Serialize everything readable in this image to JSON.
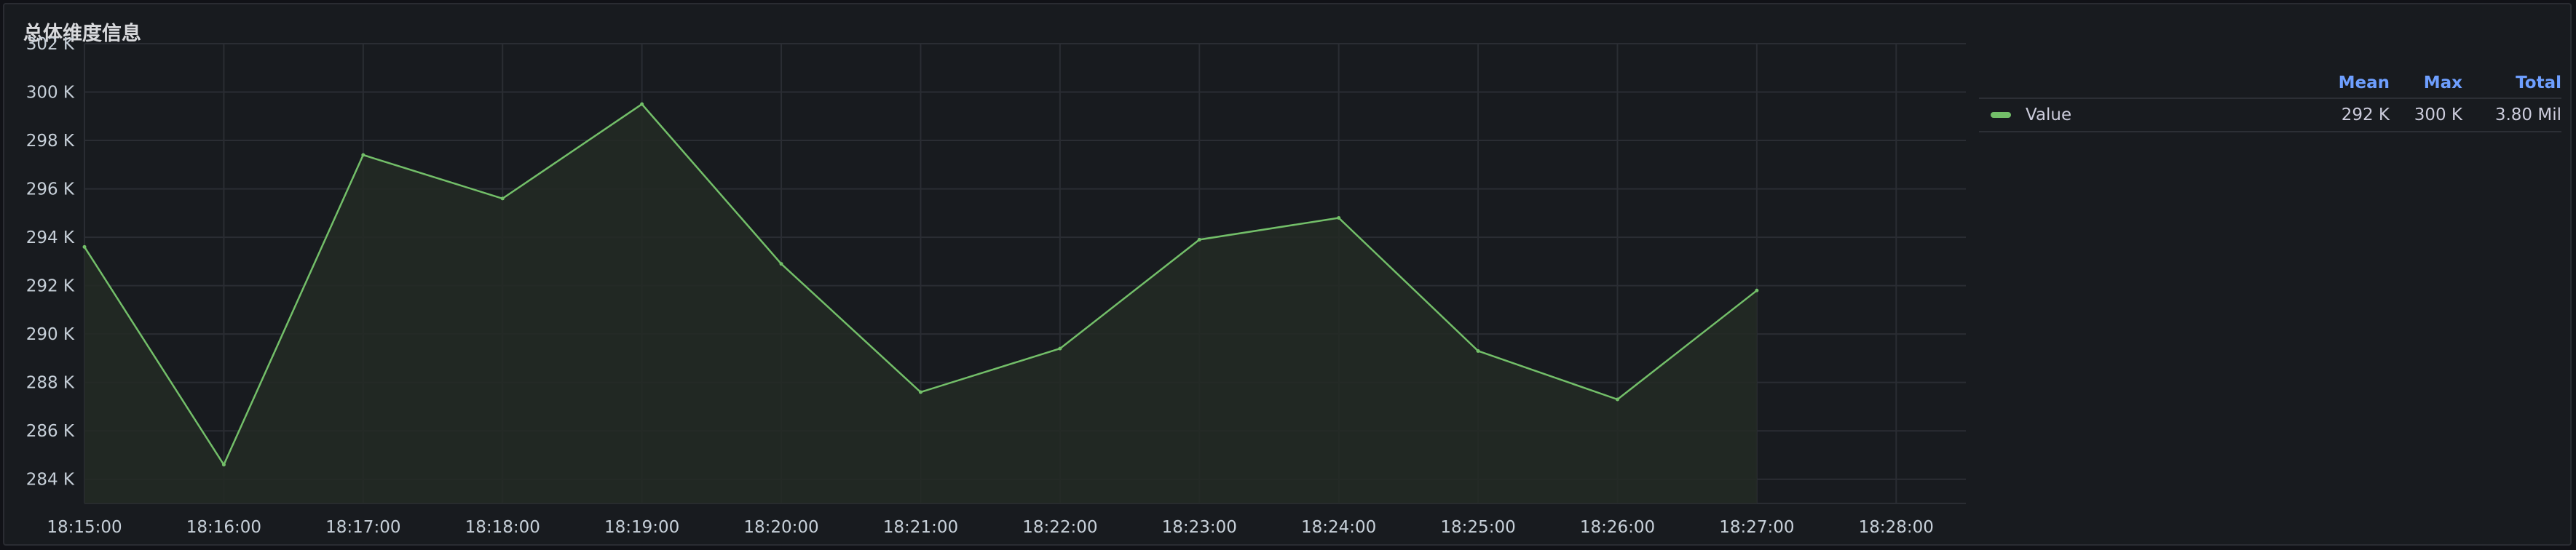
{
  "panel": {
    "title": "总体维度信息"
  },
  "colors": {
    "series": "#73bf69",
    "fill": "#232a24",
    "grid": "#2a2d33",
    "legend_header": "#6e9fff"
  },
  "legend": {
    "headers": [
      "Mean",
      "Max",
      "Total"
    ],
    "rows": [
      {
        "name": "Value",
        "mean": "292 K",
        "max": "300 K",
        "total": "3.80 Mil"
      }
    ]
  },
  "chart_data": {
    "type": "area",
    "title": "总体维度信息",
    "xlabel": "",
    "ylabel": "",
    "x_ticks": [
      "18:15:00",
      "18:16:00",
      "18:17:00",
      "18:18:00",
      "18:19:00",
      "18:20:00",
      "18:21:00",
      "18:22:00",
      "18:23:00",
      "18:24:00",
      "18:25:00",
      "18:26:00",
      "18:27:00",
      "18:28:00"
    ],
    "y_ticks": [
      "284 K",
      "286 K",
      "288 K",
      "290 K",
      "292 K",
      "294 K",
      "296 K",
      "298 K",
      "300 K",
      "302 K"
    ],
    "y_tick_values": [
      284000,
      286000,
      288000,
      290000,
      292000,
      294000,
      296000,
      298000,
      300000,
      302000
    ],
    "ylim": [
      283000,
      302000
    ],
    "xlim": [
      "18:15:00",
      "18:28:30"
    ],
    "grid": true,
    "legend_position": "right",
    "series": [
      {
        "name": "Value",
        "x": [
          "18:15:00",
          "18:16:00",
          "18:17:00",
          "18:18:00",
          "18:19:00",
          "18:20:00",
          "18:21:00",
          "18:22:00",
          "18:23:00",
          "18:24:00",
          "18:25:00",
          "18:26:00",
          "18:27:00"
        ],
        "values": [
          293600,
          284600,
          297400,
          295600,
          299500,
          292900,
          287600,
          289400,
          293900,
          294800,
          289300,
          287300,
          291800
        ]
      }
    ]
  }
}
